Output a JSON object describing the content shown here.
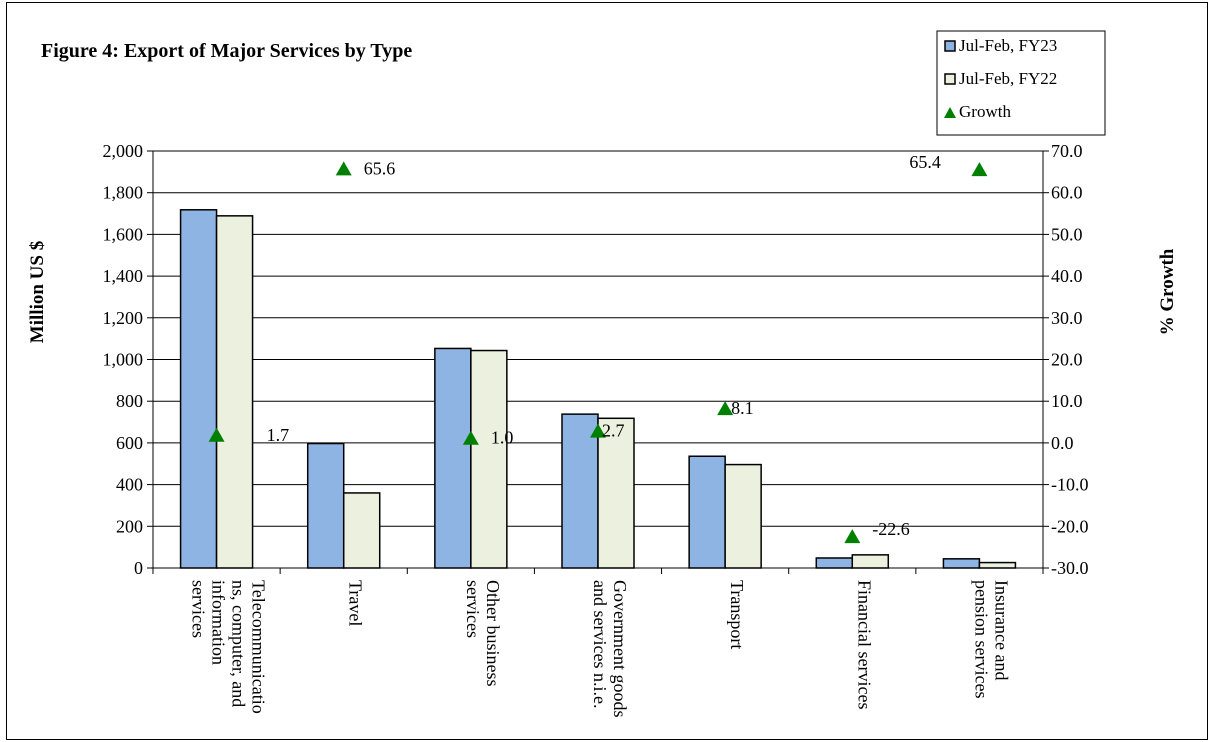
{
  "chart_data": {
    "type": "bar",
    "title": "Figure 4: Export of Major Services by Type",
    "ylabel": "Million US $",
    "y2label": "% Growth",
    "ylim": [
      0,
      2000
    ],
    "y2lim": [
      -30,
      70
    ],
    "yticks": [
      "0",
      "200",
      "400",
      "600",
      "800",
      "1,000",
      "1,200",
      "1,400",
      "1,600",
      "1,800",
      "2,000"
    ],
    "y2ticks": [
      "-30.0",
      "-20.0",
      "-10.0",
      "0.0",
      "10.0",
      "20.0",
      "30.0",
      "40.0",
      "50.0",
      "60.0",
      "70.0"
    ],
    "grid": true,
    "legend_position": "top-right",
    "categories": [
      [
        "Telecommunicatio",
        "ns, computer, and",
        "information",
        "services"
      ],
      [
        "Travel"
      ],
      [
        "Other business",
        "services"
      ],
      [
        "Government goods",
        "and services n.i.e."
      ],
      [
        "Transport"
      ],
      [
        "Financial services"
      ],
      [
        "Insurance and",
        "pension services"
      ]
    ],
    "series": [
      {
        "name": "Jul-Feb, FY23",
        "type": "bar",
        "axis": "left",
        "color": "#8eb4e3",
        "values": [
          1718,
          597,
          1053,
          738,
          536,
          48,
          44
        ]
      },
      {
        "name": "Jul-Feb, FY22",
        "type": "bar",
        "axis": "left",
        "color": "#ecf0de",
        "values": [
          1689,
          360,
          1043,
          718,
          496,
          63,
          26
        ]
      },
      {
        "name": "Growth",
        "type": "scatter",
        "axis": "right",
        "marker": "triangle",
        "color": "#008000",
        "values": [
          1.7,
          65.6,
          1.0,
          2.7,
          8.1,
          -22.6,
          65.4
        ],
        "labels": [
          "1.7",
          "65.6",
          "1.0",
          "2.7",
          "8.1",
          "-22.6",
          "65.4"
        ]
      }
    ]
  }
}
